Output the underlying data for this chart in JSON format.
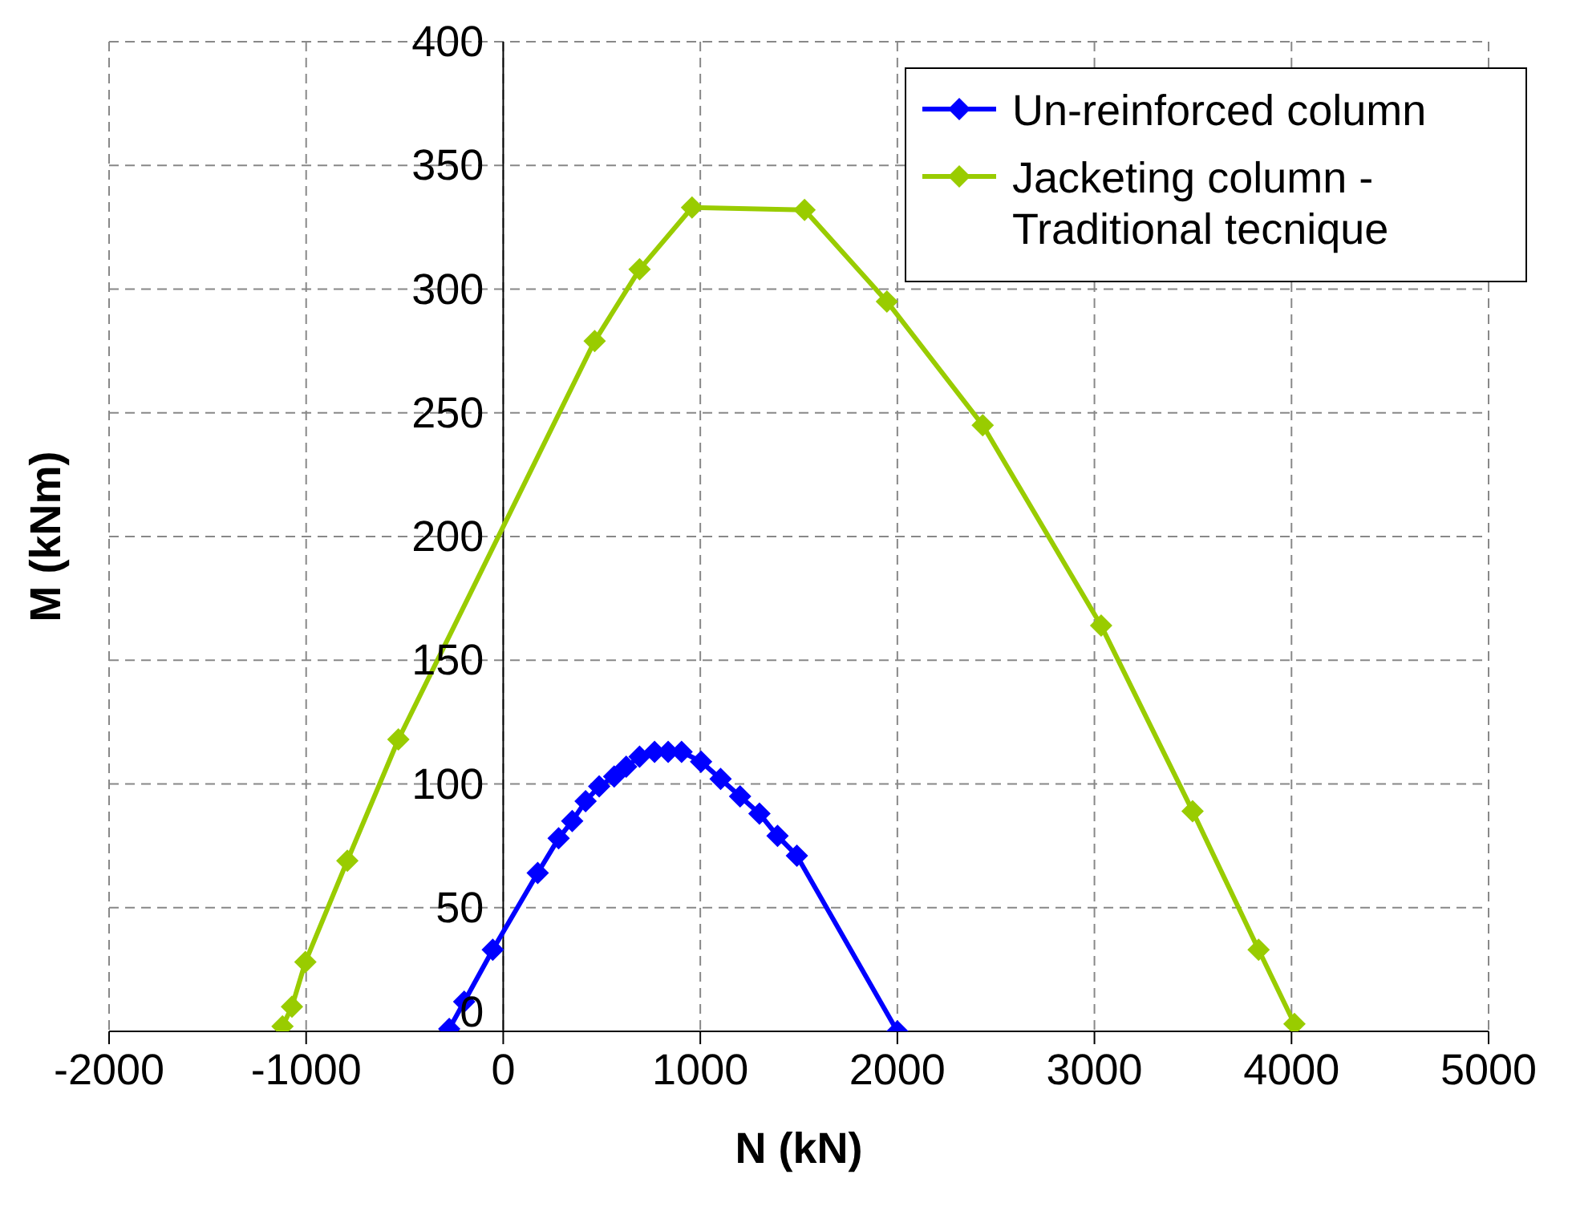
{
  "chart_data": {
    "type": "line",
    "xlabel": "N (kN)",
    "ylabel": "M (kNm)",
    "xlim": [
      -2000,
      5000
    ],
    "ylim": [
      0,
      400
    ],
    "xticks": [
      -2000,
      -1000,
      0,
      1000,
      2000,
      3000,
      4000,
      5000
    ],
    "yticks": [
      0,
      50,
      100,
      150,
      200,
      250,
      300,
      350,
      400
    ],
    "grid": true,
    "legend": "top right",
    "marker": "diamond",
    "line_style": "solid",
    "series": [
      {
        "name": "Un-reinforced column",
        "color": "#0000ff",
        "x": [
          -274,
          -198,
          -53,
          175,
          281,
          350,
          418,
          487,
          563,
          624,
          692,
          768,
          837,
          905,
          1004,
          1103,
          1202,
          1300,
          1392,
          1490,
          2000
        ],
        "values": [
          1,
          12,
          33,
          64,
          78,
          85,
          93,
          99,
          103,
          107,
          111,
          113,
          113,
          113,
          109,
          102,
          95,
          88,
          79,
          71,
          0
        ]
      },
      {
        "name": "Jacketing column - Traditional tecnique",
        "color": "#99cc00",
        "x": [
          -1120,
          -1072,
          -1004,
          -791,
          -532,
          464,
          692,
          958,
          1529,
          1947,
          2433,
          3034,
          3498,
          3833,
          4015
        ],
        "values": [
          2,
          10,
          28,
          69,
          118,
          279,
          308,
          333,
          332,
          295,
          245,
          164,
          89,
          33,
          3
        ]
      }
    ]
  }
}
